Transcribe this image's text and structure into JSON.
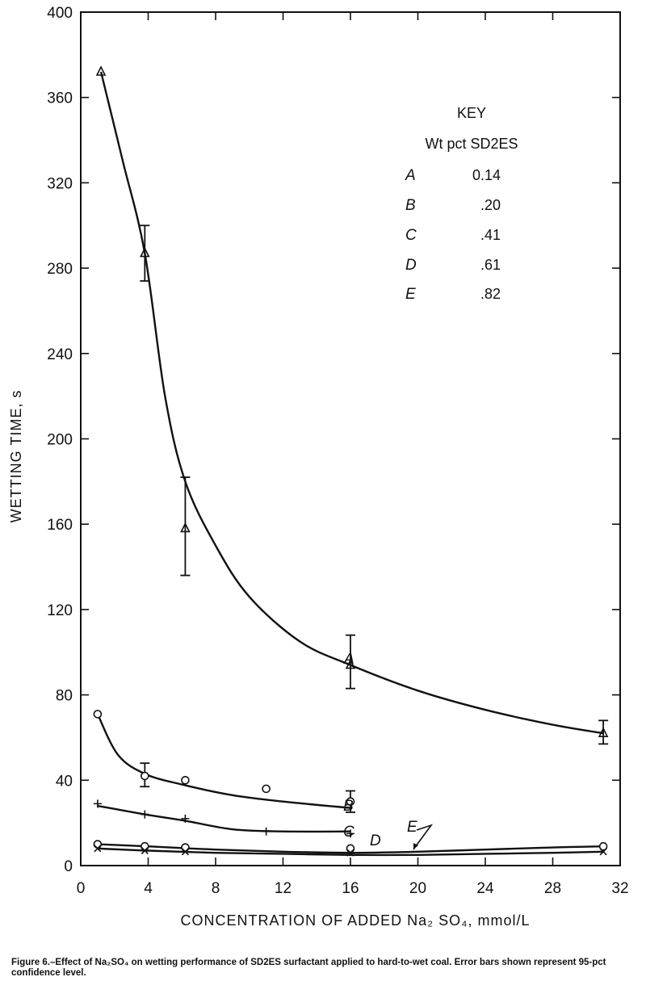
{
  "chart_data": {
    "type": "line",
    "xlabel": "CONCENTRATION OF ADDED Na₂ SO₄, mmol/L",
    "ylabel": "WETTING TIME, s",
    "xlim": [
      0,
      32
    ],
    "ylim": [
      0,
      400
    ],
    "xticks": [
      "0",
      "4",
      "8",
      "12",
      "16",
      "20",
      "24",
      "28",
      "32"
    ],
    "yticks": [
      "0",
      "40",
      "80",
      "120",
      "160",
      "200",
      "240",
      "280",
      "320",
      "360",
      "400"
    ],
    "grid": false,
    "key": {
      "title": "KEY",
      "subtitle": "Wt pct SD2ES",
      "entries": [
        {
          "label": "A",
          "value": "0.14"
        },
        {
          "label": "B",
          "value": ".20"
        },
        {
          "label": "C",
          "value": ".41"
        },
        {
          "label": "D",
          "value": ".61"
        },
        {
          "label": "E",
          "value": ".82"
        }
      ]
    },
    "series": [
      {
        "name": "A",
        "marker": "triangle",
        "points": [
          [
            1.2,
            372
          ],
          [
            3.8,
            287
          ],
          [
            6.2,
            158
          ],
          [
            16,
            94
          ],
          [
            31,
            62
          ]
        ],
        "errors": [
          null,
          [
            274,
            300
          ],
          [
            136,
            182
          ],
          [
            83,
            108
          ],
          [
            57,
            68
          ]
        ],
        "curve": [
          [
            1.2,
            372
          ],
          [
            2.5,
            330
          ],
          [
            3.8,
            287
          ],
          [
            5,
            220
          ],
          [
            6.2,
            180
          ],
          [
            8,
            150
          ],
          [
            10,
            126
          ],
          [
            13,
            105
          ],
          [
            16,
            94
          ],
          [
            20,
            82
          ],
          [
            24,
            73
          ],
          [
            28,
            66
          ],
          [
            31,
            62
          ]
        ]
      },
      {
        "name": "B",
        "marker": "circle",
        "points": [
          [
            1,
            71
          ],
          [
            3.8,
            42
          ],
          [
            6.2,
            40
          ],
          [
            11,
            36
          ],
          [
            16,
            30
          ]
        ],
        "errors": [
          null,
          [
            37,
            48
          ],
          null,
          null,
          [
            25,
            35
          ]
        ],
        "curve": [
          [
            1,
            71
          ],
          [
            2.2,
            52
          ],
          [
            3.8,
            43
          ],
          [
            6,
            38
          ],
          [
            9,
            33
          ],
          [
            12,
            30
          ],
          [
            16,
            27
          ]
        ]
      },
      {
        "name": "C",
        "marker": "plus",
        "points": [
          [
            1,
            29
          ],
          [
            3.8,
            24
          ],
          [
            6.2,
            22
          ],
          [
            11,
            16
          ],
          [
            16,
            15
          ]
        ],
        "curve": [
          [
            1,
            28
          ],
          [
            3.8,
            24
          ],
          [
            6.2,
            21
          ],
          [
            9,
            17
          ],
          [
            12,
            16
          ],
          [
            16,
            16
          ]
        ]
      },
      {
        "name": "D",
        "marker": "circle",
        "points": [
          [
            1,
            10
          ],
          [
            3.8,
            9
          ],
          [
            6.2,
            8.5
          ],
          [
            16,
            8
          ],
          [
            31,
            9
          ]
        ],
        "curve": [
          [
            1,
            10
          ],
          [
            4,
            9
          ],
          [
            8,
            7.5
          ],
          [
            12,
            6.5
          ],
          [
            16,
            6
          ],
          [
            20,
            6.5
          ],
          [
            24,
            7.5
          ],
          [
            28,
            8.5
          ],
          [
            31,
            9
          ]
        ]
      },
      {
        "name": "E",
        "marker": "x",
        "points": [
          [
            1,
            8
          ],
          [
            3.8,
            7
          ],
          [
            6.2,
            6.5
          ],
          [
            16,
            6
          ],
          [
            31,
            6.5
          ]
        ],
        "curve": [
          [
            1,
            8
          ],
          [
            4,
            7
          ],
          [
            8,
            6
          ],
          [
            12,
            5.5
          ],
          [
            16,
            5
          ],
          [
            20,
            5
          ],
          [
            24,
            5.5
          ],
          [
            28,
            6
          ],
          [
            31,
            6.5
          ]
        ]
      }
    ],
    "annotations": [
      "A",
      "B",
      "C",
      "D",
      "E"
    ]
  },
  "caption": {
    "figure": "Figure 6.",
    "text": "–Effect of Na₂SO₄ on wetting performance of SD2ES surfactant applied to hard-to-wet coal.  Error bars shown represent 95-pct confidence level."
  }
}
